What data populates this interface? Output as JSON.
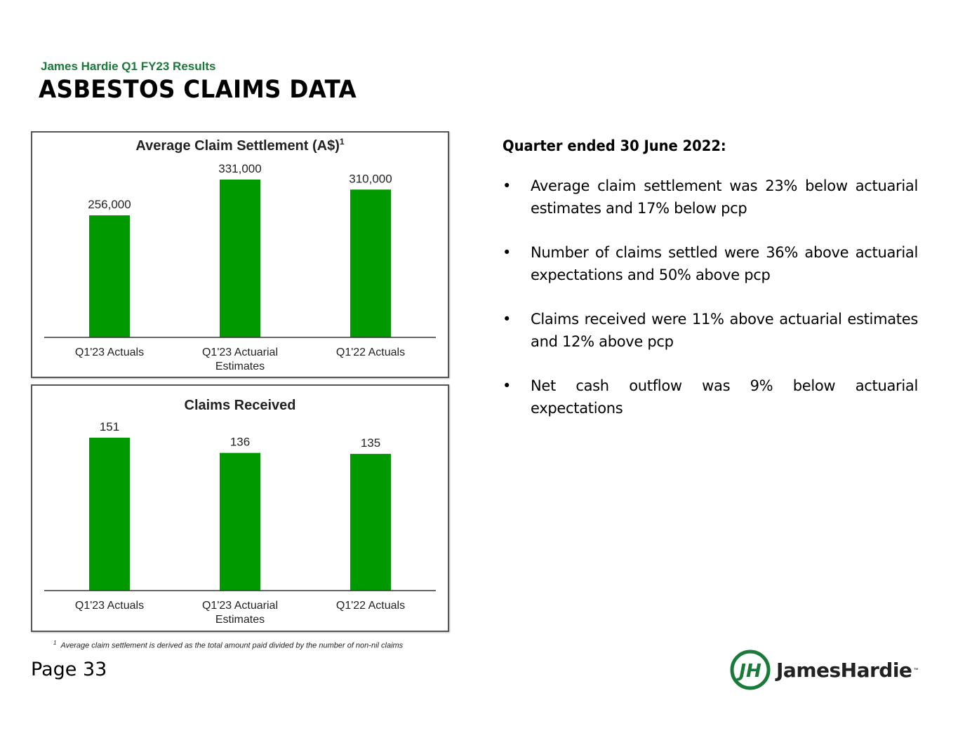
{
  "header": {
    "subtitle": "James Hardie Q1 FY23 Results",
    "title": "ASBESTOS CLAIMS DATA"
  },
  "colors": {
    "bar": "#009900",
    "brand_green": "#1a7a3a"
  },
  "chart_data": [
    {
      "type": "bar",
      "title": "Average Claim Settlement (A$)",
      "title_superscript": "1",
      "categories": [
        "Q1'23 Actuals",
        "Q1'23 Actuarial Estimates",
        "Q1'22 Actuals"
      ],
      "category_lines": [
        [
          "Q1'23 Actuals"
        ],
        [
          "Q1'23 Actuarial",
          "Estimates"
        ],
        [
          "Q1'22 Actuals"
        ]
      ],
      "values": [
        256000,
        331000,
        310000
      ],
      "labels": [
        "256,000",
        "331,000",
        "310,000"
      ],
      "ylim": [
        0,
        331000
      ],
      "xlabel": "",
      "ylabel": ""
    },
    {
      "type": "bar",
      "title": "Claims Received",
      "title_superscript": "",
      "categories": [
        "Q1'23 Actuals",
        "Q1'23 Actuarial Estimates",
        "Q1'22 Actuals"
      ],
      "category_lines": [
        [
          "Q1'23 Actuals"
        ],
        [
          "Q1'23 Actuarial",
          "Estimates"
        ],
        [
          "Q1'22 Actuals"
        ]
      ],
      "values": [
        151,
        136,
        135
      ],
      "labels": [
        "151",
        "136",
        "135"
      ],
      "ylim": [
        0,
        151
      ],
      "xlabel": "",
      "ylabel": ""
    }
  ],
  "footnote": {
    "marker": "1",
    "text": "Average claim settlement is derived as the total amount paid divided by the number of non-nil claims"
  },
  "summary": {
    "heading": "Quarter ended 30 June 2022:",
    "bullet_glyph": "•",
    "bullets": [
      "Average claim settlement was 23% below actuarial estimates and 17% below pcp",
      "Number of claims settled were 36% above actuarial expectations and 50% above pcp",
      "Claims received were 11% above actuarial estimates and 12% above pcp",
      "Net cash outflow was 9% below actuarial expectations"
    ]
  },
  "footer": {
    "page": "Page 33",
    "logo_text": "JamesHardie",
    "logo_tm": "™",
    "logo_monogram": "JH"
  }
}
